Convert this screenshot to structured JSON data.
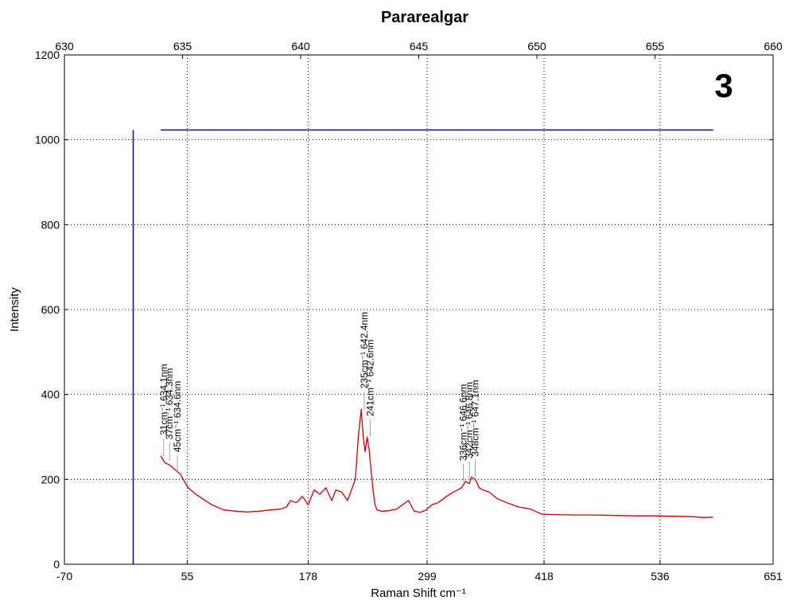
{
  "chart_data": {
    "type": "line",
    "title": "Parareal​gar",
    "badge": "3",
    "xlabel": "Raman Shift cm⁻¹",
    "ylabel": "Intensity",
    "ylim": [
      0,
      1200
    ],
    "yticks": [
      0,
      200,
      400,
      600,
      800,
      1000,
      1200
    ],
    "xlim_bottom": [
      -70,
      651
    ],
    "xticks_bottom": [
      -70,
      55,
      178,
      299,
      418,
      536,
      651
    ],
    "xlim_top": [
      630,
      660
    ],
    "xticks_top": [
      630,
      635,
      640,
      645,
      650,
      655,
      660
    ],
    "grid": true,
    "series": [
      {
        "color": "#cc0000",
        "x": [
          28,
          32,
          36,
          40,
          44,
          48,
          52,
          56,
          62,
          70,
          80,
          92,
          104,
          116,
          128,
          140,
          150,
          156,
          160,
          166,
          172,
          178,
          184,
          190,
          196,
          202,
          206,
          212,
          218,
          222,
          226,
          229,
          232,
          234,
          236,
          238,
          240,
          242,
          244,
          246,
          248,
          252,
          256,
          262,
          268,
          274,
          280,
          286,
          292,
          298,
          304,
          310,
          316,
          322,
          326,
          330,
          334,
          338,
          342,
          344,
          348,
          352,
          356,
          362,
          370,
          380,
          392,
          404,
          416,
          430,
          450,
          470,
          490,
          510,
          530,
          550,
          570,
          580,
          590
        ],
        "y": [
          255,
          240,
          235,
          228,
          220,
          212,
          195,
          180,
          168,
          155,
          140,
          128,
          125,
          123,
          125,
          128,
          130,
          135,
          150,
          145,
          160,
          140,
          175,
          165,
          180,
          150,
          175,
          170,
          150,
          175,
          200,
          300,
          365,
          300,
          265,
          300,
          270,
          220,
          175,
          140,
          128,
          125,
          125,
          127,
          130,
          140,
          150,
          125,
          122,
          128,
          140,
          145,
          155,
          165,
          170,
          175,
          180,
          195,
          190,
          205,
          200,
          180,
          175,
          170,
          155,
          145,
          135,
          130,
          118,
          117,
          116,
          116,
          115,
          114,
          114,
          113,
          112,
          110,
          111
        ]
      }
    ],
    "reference_lines": [
      {
        "orientation": "vertical",
        "x": 0,
        "y_from": 0,
        "y_to": 1023,
        "color": "#0000cc"
      },
      {
        "orientation": "horizontal",
        "y": 1023,
        "x_from": 28,
        "x_to": 590,
        "color": "#0000cc"
      }
    ],
    "annotations": [
      {
        "text": "31cm⁻¹ 634.1nm",
        "x": 31,
        "y": 255
      },
      {
        "text": "37cm⁻¹ 634.3nm",
        "x": 37,
        "y": 245
      },
      {
        "text": "45cm⁻¹ 634.6nm",
        "x": 45,
        "y": 215
      },
      {
        "text": "235cm⁻¹ 642.4nm",
        "x": 235,
        "y": 365
      },
      {
        "text": "241cm⁻¹ 642.6nm",
        "x": 241,
        "y": 300
      },
      {
        "text": "336cm⁻¹ 646.6nm",
        "x": 336,
        "y": 195
      },
      {
        "text": "342cm⁻¹ 646.8nm",
        "x": 342,
        "y": 200
      },
      {
        "text": "348cm⁻¹ 647.1nm",
        "x": 348,
        "y": 205
      }
    ]
  }
}
